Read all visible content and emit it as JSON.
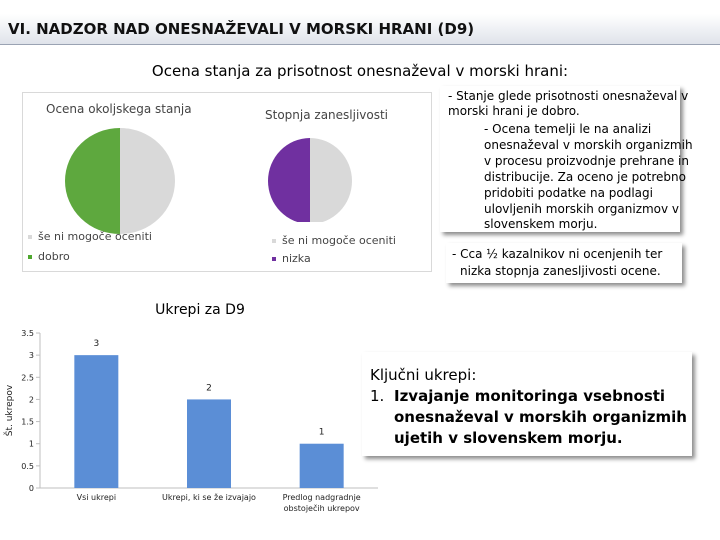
{
  "slide": {
    "title": "VI. NADZOR NAD ONESNAŽEVALI V MORSKI HRANI (D9)",
    "subtitle": "Ocena stanja za prisotnost onesnaževal v morski hrani:"
  },
  "pie_left": {
    "title": "Ocena okoljskega stanja",
    "legend": [
      {
        "label": "še ni mogoče oceniti",
        "color": "#d9d9d9"
      },
      {
        "label": "dobro",
        "color": "#4ea72e"
      }
    ]
  },
  "pie_right": {
    "title": "Stopnja zanesljivosti",
    "legend": [
      {
        "label": "še ni mogoče oceniti",
        "color": "#d9d9d9"
      },
      {
        "label": "nizka",
        "color": "#7030a0"
      }
    ]
  },
  "note_assessment": {
    "lines": [
      "- Stanje glede prisotnosti onesnaževal v",
      "morski hrani je dobro.",
      "- Ocena temelji le na analizi",
      "onesnaževal v morskih organizmih",
      "v procesu proizvodnje prehrane in",
      "distribucije. Za oceno je potrebno",
      "pridobiti podatke na podlagi",
      "ulovljenih morskih organizmov v",
      "slovenskem morju."
    ]
  },
  "note_reliability": {
    "lines": [
      "- Cca ½ kazalnikov ni ocenjenih ter",
      "nizka stopnja zanesljivosti ocene."
    ]
  },
  "bar_section": {
    "title": "Ukrepi za D9"
  },
  "key_measures": {
    "heading": "Ključni ukrepi:",
    "item_number": "1.",
    "item_lines": [
      "Izvajanje monitoringa vsebnosti",
      "onesnaževal v morskih organizmih",
      "ujetih v slovenskem morju."
    ]
  },
  "colors": {
    "bar": "#5b8ed6",
    "pie_green": "#5ea83e",
    "pie_gray": "#d9d9d9",
    "pie_purple": "#7030a0"
  },
  "chart_data": [
    {
      "type": "pie",
      "title": "Ocena okoljskega stanja",
      "labels": [
        "še ni mogoče oceniti",
        "dobro"
      ],
      "values": [
        50,
        50
      ]
    },
    {
      "type": "pie",
      "title": "Stopnja zanesljivosti",
      "labels": [
        "še ni mogoče oceniti",
        "nizka"
      ],
      "values": [
        50,
        50
      ]
    },
    {
      "type": "bar",
      "title": "Ukrepi za D9",
      "ylabel": "Št. ukrepov",
      "categories": [
        "Vsi ukrepi",
        "Ukrepi, ki se že izvajajo",
        "Predlog nadgradnje obstoječih ukrepov"
      ],
      "category_lines": [
        [
          "Vsi ukrepi"
        ],
        [
          "Ukrepi, ki se že izvajajo"
        ],
        [
          "Predlog nadgradnje",
          "obstoječih ukrepov"
        ]
      ],
      "values": [
        3,
        2,
        1
      ],
      "data_labels": [
        "3",
        "2",
        "1"
      ],
      "yticks": [
        "0",
        "0.5",
        "1",
        "1.5",
        "2",
        "2.5",
        "3",
        "3.5"
      ],
      "ylim": [
        0,
        3.5
      ],
      "grid": false
    }
  ]
}
